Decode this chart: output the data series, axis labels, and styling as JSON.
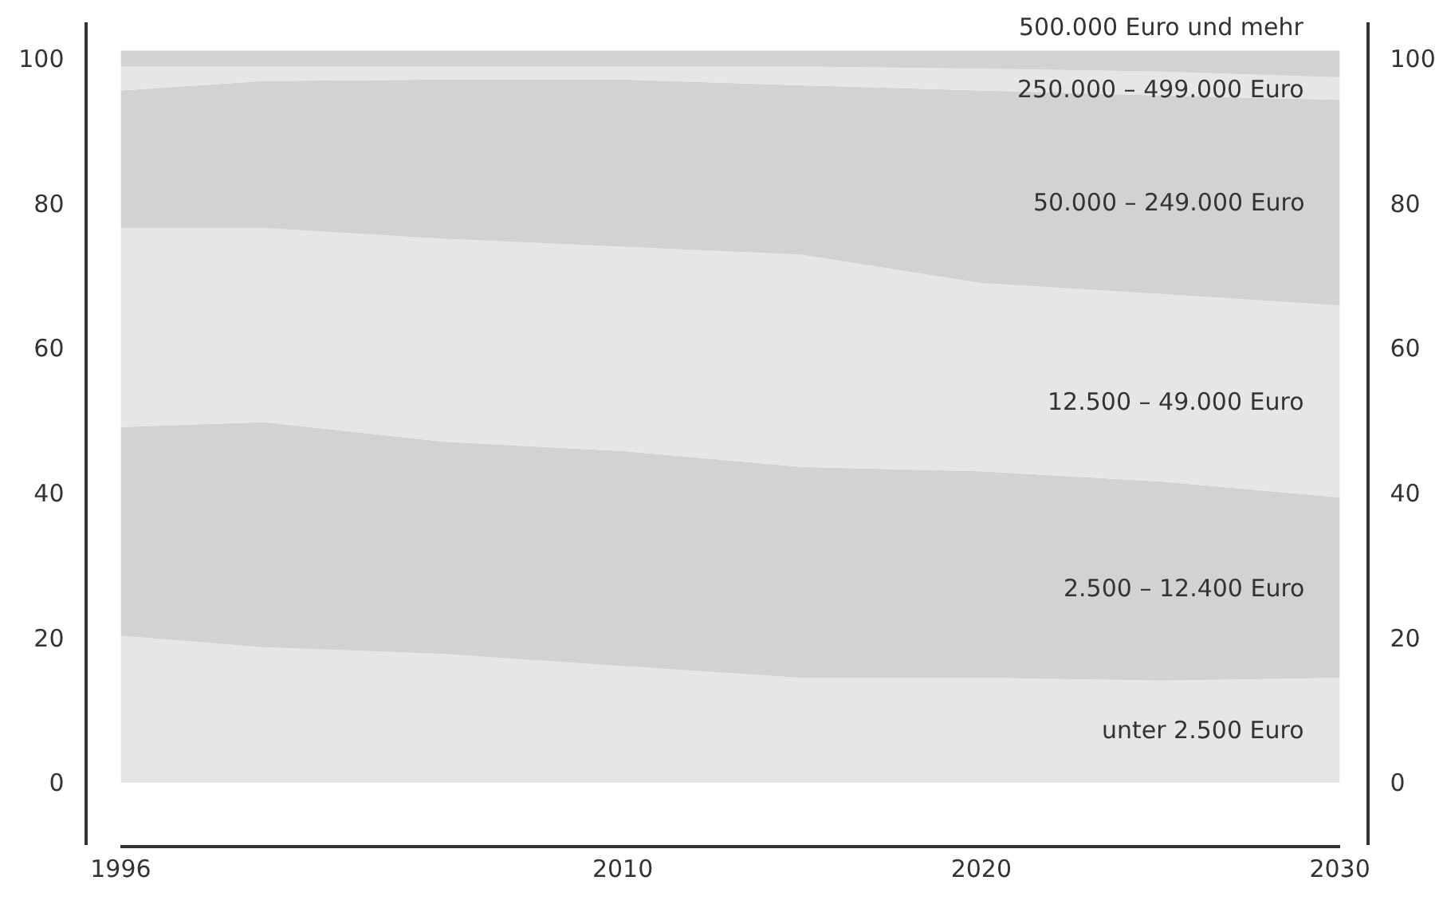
{
  "chart_data": {
    "type": "area",
    "stacked": true,
    "x": [
      1996,
      2000,
      2005,
      2010,
      2015,
      2020,
      2025,
      2030
    ],
    "xlim": [
      1996,
      2030
    ],
    "xticks": [
      1996,
      2010,
      2020,
      2030
    ],
    "ylim": [
      -8.6,
      105
    ],
    "yticks": [
      0,
      20,
      40,
      60,
      80,
      100
    ],
    "y2lim": [
      -8.6,
      105
    ],
    "y2ticks": [
      0,
      20,
      40,
      60,
      80,
      100
    ],
    "series": [
      {
        "name": "unter 2.500 Euro",
        "color": "#e5e6e8",
        "values": [
          20.3,
          18.7,
          17.8,
          16.1,
          14.5,
          14.5,
          14.1,
          14.5
        ]
      },
      {
        "name": "2.500 – 12.400 Euro",
        "color": "#d1d2d4",
        "values": [
          28.8,
          31.1,
          29.3,
          29.7,
          29.1,
          28.5,
          27.5,
          24.9
        ]
      },
      {
        "name": "12.500 – 49.000 Euro",
        "color": "#e5e6e8",
        "values": [
          27.5,
          26.8,
          28.0,
          28.2,
          29.3,
          26.0,
          25.9,
          26.5
        ]
      },
      {
        "name": "50.000 – 249.000 Euro",
        "color": "#d1d2d4",
        "values": [
          19.0,
          20.3,
          22.0,
          23.1,
          23.4,
          26.6,
          27.4,
          28.4
        ]
      },
      {
        "name": "250.000 – 499.000 Euro",
        "color": "#e5e6e8",
        "values": [
          3.3,
          2.0,
          1.8,
          1.8,
          2.6,
          3.0,
          3.3,
          3.1
        ]
      },
      {
        "name": "500.000 Euro und mehr",
        "color": "#d1d2d4",
        "values": [
          2.2,
          2.2,
          2.2,
          2.2,
          2.2,
          2.5,
          2.9,
          3.7
        ]
      }
    ]
  }
}
